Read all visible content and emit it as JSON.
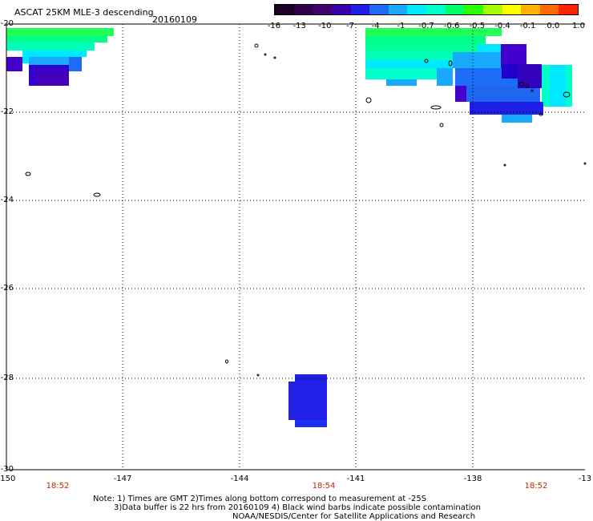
{
  "header": {
    "title": "ASCAT 25KM MLE-3 descending",
    "date": "20160109"
  },
  "colorbar": {
    "labels": [
      "-16",
      "-13",
      "-10",
      "-7",
      "-4",
      "-1",
      "-0.7",
      "-0.6",
      "-0.5",
      "-0.4",
      "-0.1",
      "0.0",
      "1.0"
    ],
    "colors": [
      "#1a0026",
      "#300048",
      "#44006a",
      "#3300aa",
      "#1f1fe6",
      "#1d6cf7",
      "#19a9ff",
      "#00e8ff",
      "#00ffc8",
      "#00ff66",
      "#2dff00",
      "#a6ff00",
      "#ffff00",
      "#ffb000",
      "#ff6a00",
      "#ff2400"
    ]
  },
  "axes": {
    "y_labels": [
      "-20",
      "-22",
      "-24",
      "-26",
      "-28",
      "-30"
    ],
    "x_labels": [
      "-150",
      "-147",
      "-144",
      "-141",
      "-138",
      "-13"
    ]
  },
  "times": [
    "18:52",
    "18:54",
    "18:52"
  ],
  "notes": {
    "line1": "Note: 1) Times are GMT 2)Times along bottom correspond to measurement at -25S",
    "line2": "3)Data buffer is 22 hrs from 20160109 4) Black wind barbs indicate possible contamination",
    "line3": "NOAA/NESDIS/Center for Satellite Applications and Research"
  }
}
